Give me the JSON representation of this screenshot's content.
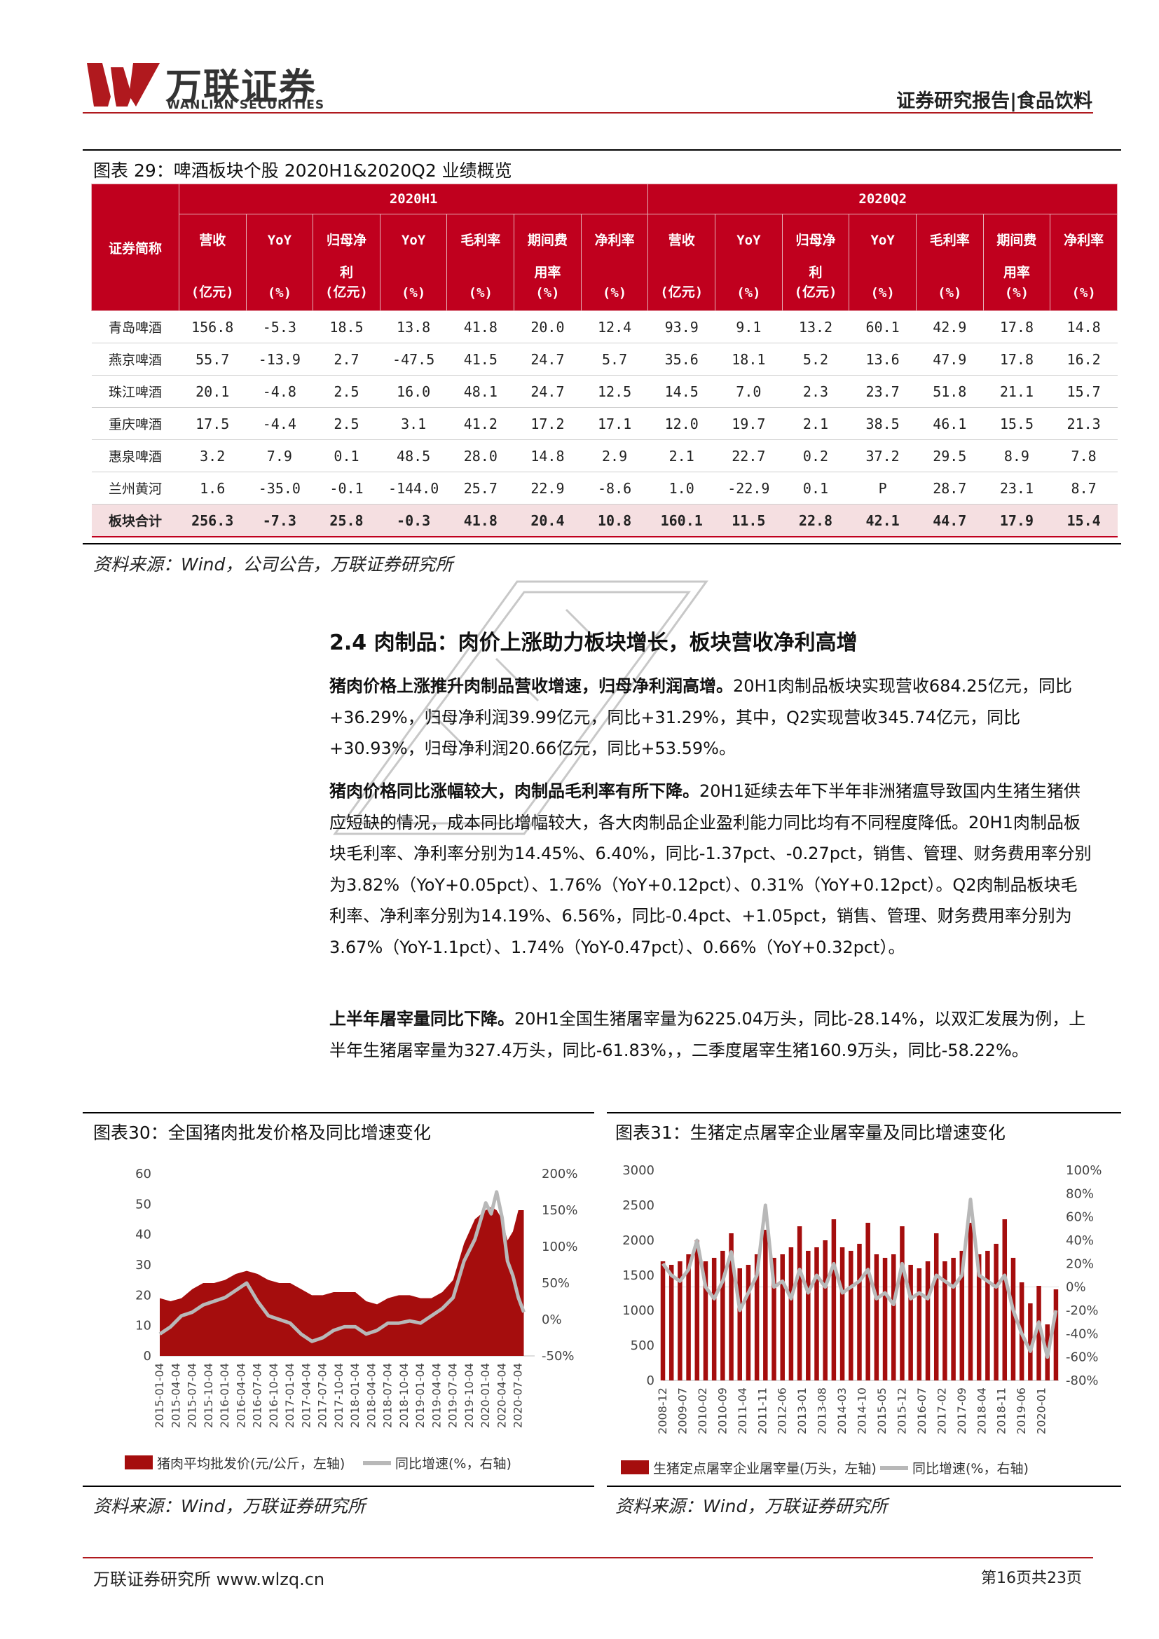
{
  "header": {
    "brand_cn": "万联证券",
    "brand_en": "WANLIAN SECURITIES",
    "report_type": "证券研究报告|食品饮料",
    "logo_color": "#b0191e"
  },
  "table29": {
    "caption": "图表 29：啤酒板块个股 2020H1&2020Q2 业绩概览",
    "corner_header": "证券简称",
    "groups": [
      "2020H1",
      "2020Q2"
    ],
    "metrics": [
      {
        "name": "营收",
        "unit": "(亿元)"
      },
      {
        "name": "YoY",
        "unit": "(%)"
      },
      {
        "name": "归母净利",
        "unit": "(亿元)"
      },
      {
        "name": "YoY",
        "unit": "(%)"
      },
      {
        "name": "毛利率",
        "unit": "(%)"
      },
      {
        "name": "期间费用率",
        "unit": "(%)"
      },
      {
        "name": "净利率",
        "unit": "(%)"
      },
      {
        "name": "营收",
        "unit": "(亿元)"
      },
      {
        "name": "YoY",
        "unit": "(%)"
      },
      {
        "name": "归母净利",
        "unit": "(亿元)"
      },
      {
        "name": "YoY",
        "unit": "(%)"
      },
      {
        "name": "毛利率",
        "unit": "(%)"
      },
      {
        "name": "期间费用率",
        "unit": "(%)"
      },
      {
        "name": "净利率",
        "unit": "(%)"
      }
    ],
    "rows": [
      {
        "name": "青岛啤酒",
        "values": [
          "156.8",
          "-5.3",
          "18.5",
          "13.8",
          "41.8",
          "20.0",
          "12.4",
          "93.9",
          "9.1",
          "13.2",
          "60.1",
          "42.9",
          "17.8",
          "14.8"
        ]
      },
      {
        "name": "燕京啤酒",
        "values": [
          "55.7",
          "-13.9",
          "2.7",
          "-47.5",
          "41.5",
          "24.7",
          "5.7",
          "35.6",
          "18.1",
          "5.2",
          "13.6",
          "47.9",
          "17.8",
          "16.2"
        ]
      },
      {
        "name": "珠江啤酒",
        "values": [
          "20.1",
          "-4.8",
          "2.5",
          "16.0",
          "48.1",
          "24.7",
          "12.5",
          "14.5",
          "7.0",
          "2.3",
          "23.7",
          "51.8",
          "21.1",
          "15.7"
        ]
      },
      {
        "name": "重庆啤酒",
        "values": [
          "17.5",
          "-4.4",
          "2.5",
          "3.1",
          "41.2",
          "17.2",
          "17.1",
          "12.0",
          "19.7",
          "2.1",
          "38.5",
          "46.1",
          "15.5",
          "21.3"
        ]
      },
      {
        "name": "惠泉啤酒",
        "values": [
          "3.2",
          "7.9",
          "0.1",
          "48.5",
          "28.0",
          "14.8",
          "2.9",
          "2.1",
          "22.7",
          "0.2",
          "37.2",
          "29.5",
          "8.9",
          "7.8"
        ]
      },
      {
        "name": "兰州黄河",
        "values": [
          "1.6",
          "-35.0",
          "-0.1",
          "-144.0",
          "25.7",
          "22.9",
          "-8.6",
          "1.0",
          "-22.9",
          "0.1",
          "P",
          "28.7",
          "23.1",
          "8.7"
        ]
      }
    ],
    "total": {
      "name": "板块合计",
      "values": [
        "256.3",
        "-7.3",
        "25.8",
        "-0.3",
        "41.8",
        "20.4",
        "10.8",
        "160.1",
        "11.5",
        "22.8",
        "42.1",
        "44.7",
        "17.9",
        "15.4"
      ]
    },
    "source": "资料来源：Wind，公司公告，万联证券研究所",
    "header_color": "#c0001e"
  },
  "section": {
    "title": "2.4 肉制品：肉价上涨助力板块增长，板块营收净利高增",
    "paragraphs": [
      {
        "lead": "猪肉价格上涨推升肉制品营收增速，归母净利润高增。",
        "body": "20H1肉制品板块实现营收684.25亿元，同比+36.29%，归母净利润39.99亿元，同比+31.29%，其中，Q2实现营收345.74亿元，同比+30.93%，归母净利润20.66亿元，同比+53.59%。"
      },
      {
        "lead": "猪肉价格同比涨幅较大，肉制品毛利率有所下降。",
        "body": "20H1延续去年下半年非洲猪瘟导致国内生猪生猪供应短缺的情况，成本同比增幅较大，各大肉制品企业盈利能力同比均有不同程度降低。20H1肉制品板块毛利率、净利率分别为14.45%、6.40%，同比-1.37pct、-0.27pct，销售、管理、财务费用率分别为3.82%（YoY+0.05pct）、1.76%（YoY+0.12pct）、0.31%（YoY+0.12pct）。Q2肉制品板块毛利率、净利率分别为14.19%、6.56%，同比-0.4pct、+1.05pct，销售、管理、财务费用率分别为3.67%（YoY-1.1pct）、1.74%（YoY-0.47pct）、0.66%（YoY+0.32pct）。"
      },
      {
        "lead": "上半年屠宰量同比下降。",
        "body": "20H1全国生猪屠宰量为6225.04万头，同比-28.14%，以双汇发展为例，上半年生猪屠宰量为327.4万头，同比-61.83%，，二季度屠宰生猪160.9万头，同比-58.22%。"
      }
    ]
  },
  "figure30": {
    "title": "图表30：全国猪肉批发价格及同比增速变化",
    "source": "资料来源：Wind，万联证券研究所",
    "legend": [
      "猪肉平均批发价(元/公斤，左轴)",
      "同比增速(%，右轴)"
    ]
  },
  "figure31": {
    "title": "图表31：生猪定点屠宰企业屠宰量及同比增速变化",
    "source": "资料来源：Wind，万联证券研究所",
    "legend": [
      "生猪定点屠宰企业屠宰量(万头，左轴)",
      "同比增速(%，右轴)"
    ]
  },
  "chart_data": [
    {
      "type": "area",
      "x_ticks": [
        "2015-01-04",
        "2015-04-04",
        "2015-07-04",
        "2015-10-04",
        "2016-01-04",
        "2016-04-04",
        "2016-07-04",
        "2016-10-04",
        "2017-01-04",
        "2017-04-04",
        "2017-07-04",
        "2017-10-04",
        "2018-01-04",
        "2018-04-04",
        "2018-07-04",
        "2018-10-04",
        "2019-01-04",
        "2019-04-04",
        "2019-07-04",
        "2019-10-04",
        "2020-01-04",
        "2020-04-04",
        "2020-07-04"
      ],
      "left_ticks": [
        "0",
        "10",
        "20",
        "30",
        "40",
        "50",
        "60"
      ],
      "right_ticks": [
        "-50%",
        "0%",
        "50%",
        "100%",
        "150%",
        "200%"
      ],
      "ylim_left": [
        0,
        60
      ],
      "ylim_right": [
        -50,
        200
      ],
      "series": [
        {
          "name": "猪肉平均批发价(元/公斤，左轴)",
          "axis": "left",
          "kind": "area",
          "x": [
            "2015-01",
            "2015-03",
            "2015-05",
            "2015-07",
            "2015-09",
            "2015-11",
            "2016-01",
            "2016-03",
            "2016-05",
            "2016-07",
            "2016-09",
            "2016-11",
            "2017-01",
            "2017-03",
            "2017-05",
            "2017-07",
            "2017-09",
            "2017-11",
            "2018-01",
            "2018-03",
            "2018-05",
            "2018-07",
            "2018-09",
            "2018-11",
            "2019-01",
            "2019-03",
            "2019-05",
            "2019-07",
            "2019-09",
            "2019-11",
            "2020-01",
            "2020-02",
            "2020-03",
            "2020-04",
            "2020-05",
            "2020-06",
            "2020-07",
            "2020-08"
          ],
          "values": [
            19,
            18,
            19,
            22,
            24,
            24,
            25,
            27,
            28,
            27,
            25,
            24,
            24,
            22,
            20,
            20,
            21,
            21,
            21,
            18,
            17,
            19,
            20,
            20,
            19,
            19,
            21,
            25,
            37,
            45,
            48,
            49,
            48,
            45,
            38,
            41,
            48,
            48
          ]
        },
        {
          "name": "同比增速(%，右轴)",
          "axis": "right",
          "kind": "line",
          "x": [
            "2015-01",
            "2015-03",
            "2015-05",
            "2015-07",
            "2015-09",
            "2015-11",
            "2016-01",
            "2016-03",
            "2016-05",
            "2016-07",
            "2016-09",
            "2016-11",
            "2017-01",
            "2017-03",
            "2017-05",
            "2017-07",
            "2017-09",
            "2017-11",
            "2018-01",
            "2018-03",
            "2018-05",
            "2018-07",
            "2018-09",
            "2018-11",
            "2019-01",
            "2019-03",
            "2019-05",
            "2019-07",
            "2019-09",
            "2019-11",
            "2020-01",
            "2020-02",
            "2020-03",
            "2020-04",
            "2020-05",
            "2020-06",
            "2020-07",
            "2020-08"
          ],
          "values": [
            -20,
            -10,
            5,
            10,
            20,
            25,
            30,
            40,
            50,
            25,
            5,
            0,
            -5,
            -20,
            -30,
            -25,
            -15,
            -10,
            -10,
            -20,
            -15,
            -5,
            -5,
            -2,
            -5,
            5,
            15,
            30,
            80,
            110,
            160,
            145,
            175,
            140,
            80,
            60,
            30,
            10
          ]
        }
      ],
      "colors": [
        "#a50d0d",
        "#b8b8b8"
      ]
    },
    {
      "type": "bar",
      "x_ticks": [
        "2008-12",
        "2009-07",
        "2010-02",
        "2010-09",
        "2011-04",
        "2011-11",
        "2012-06",
        "2013-01",
        "2013-08",
        "2014-03",
        "2014-10",
        "2015-05",
        "2015-12",
        "2016-07",
        "2017-02",
        "2017-09",
        "2018-04",
        "2018-11",
        "2019-06",
        "2020-01"
      ],
      "left_ticks": [
        "0",
        "500",
        "1000",
        "1500",
        "2000",
        "2500",
        "3000"
      ],
      "right_ticks": [
        "-80%",
        "-60%",
        "-40%",
        "-20%",
        "0%",
        "20%",
        "40%",
        "60%",
        "80%",
        "100%"
      ],
      "ylim_left": [
        0,
        3000
      ],
      "ylim_right": [
        -80,
        100
      ],
      "series": [
        {
          "name": "生猪定点屠宰企业屠宰量(万头，左轴)",
          "axis": "left",
          "kind": "bar",
          "x": [
            "2008-12",
            "2009-03",
            "2009-06",
            "2009-09",
            "2009-12",
            "2010-03",
            "2010-06",
            "2010-09",
            "2010-12",
            "2011-03",
            "2011-06",
            "2011-09",
            "2011-12",
            "2012-03",
            "2012-06",
            "2012-09",
            "2012-12",
            "2013-03",
            "2013-06",
            "2013-09",
            "2013-12",
            "2014-03",
            "2014-06",
            "2014-09",
            "2014-12",
            "2015-03",
            "2015-06",
            "2015-09",
            "2015-12",
            "2016-03",
            "2016-06",
            "2016-09",
            "2016-12",
            "2017-03",
            "2017-06",
            "2017-09",
            "2017-12",
            "2018-03",
            "2018-06",
            "2018-09",
            "2018-12",
            "2019-03",
            "2019-06",
            "2019-09",
            "2019-12",
            "2020-03",
            "2020-06"
          ],
          "values": [
            1700,
            1650,
            1700,
            1800,
            2000,
            1700,
            1750,
            1850,
            2100,
            1600,
            1650,
            1800,
            2150,
            1750,
            1800,
            1900,
            2200,
            1850,
            1900,
            2000,
            2300,
            1900,
            1850,
            1950,
            2250,
            1800,
            1750,
            1800,
            2200,
            1650,
            1600,
            1700,
            2100,
            1700,
            1750,
            1850,
            2250,
            1800,
            1850,
            1950,
            2300,
            1750,
            1400,
            1100,
            1350,
            800,
            1300
          ]
        },
        {
          "name": "同比增速(%，右轴)",
          "axis": "right",
          "kind": "line",
          "x": [
            "2008-12",
            "2009-03",
            "2009-06",
            "2009-09",
            "2009-12",
            "2010-03",
            "2010-06",
            "2010-09",
            "2010-12",
            "2011-03",
            "2011-06",
            "2011-09",
            "2011-12",
            "2012-03",
            "2012-06",
            "2012-09",
            "2012-12",
            "2013-03",
            "2013-06",
            "2013-09",
            "2013-12",
            "2014-03",
            "2014-06",
            "2014-09",
            "2014-12",
            "2015-03",
            "2015-06",
            "2015-09",
            "2015-12",
            "2016-03",
            "2016-06",
            "2016-09",
            "2016-12",
            "2017-03",
            "2017-06",
            "2017-09",
            "2017-12",
            "2018-03",
            "2018-06",
            "2018-09",
            "2018-12",
            "2019-03",
            "2019-06",
            "2019-09",
            "2019-12",
            "2020-03",
            "2020-06"
          ],
          "values": [
            20,
            10,
            5,
            15,
            40,
            0,
            -10,
            5,
            30,
            -20,
            -5,
            10,
            70,
            0,
            5,
            -10,
            15,
            -5,
            10,
            0,
            20,
            -5,
            0,
            5,
            15,
            -10,
            -5,
            -15,
            20,
            -10,
            -5,
            -10,
            10,
            5,
            0,
            10,
            75,
            10,
            5,
            0,
            10,
            -20,
            -40,
            -55,
            -30,
            -60,
            -20
          ]
        }
      ],
      "colors": [
        "#a50d0d",
        "#b8b8b8"
      ]
    }
  ],
  "footer": {
    "left": "万联证券研究所 www.wlzq.cn",
    "right": "第16页共23页"
  }
}
